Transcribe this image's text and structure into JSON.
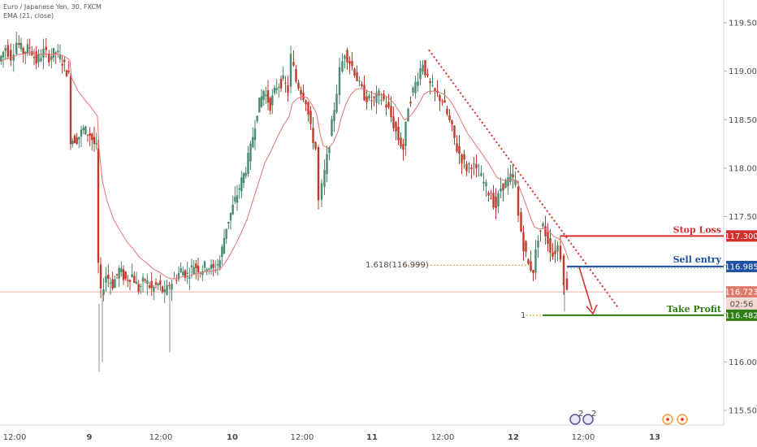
{
  "legend": {
    "symbol": "Euro / Japanese Yen, 30, FXCM",
    "indicator": "EMA (21, close)"
  },
  "chart_data": {
    "type": "candlestick",
    "ylim": [
      115.35,
      119.7
    ],
    "y_ticks": [
      115.5,
      116.0,
      116.5,
      117.0,
      117.5,
      118.0,
      118.5,
      119.0,
      119.5
    ],
    "y_tick_labels": [
      "115.500",
      "116.000",
      "116.500",
      "117.000",
      "117.500",
      "118.000",
      "118.500",
      "119.000",
      "119.500"
    ],
    "x_labels": [
      "12:00",
      "9",
      "12:00",
      "10",
      "12:00",
      "11",
      "12:00",
      "12",
      "12:00",
      "13"
    ],
    "bullish_color": "#4a8a6e",
    "bearish_color": "#c0392b",
    "ema_color": "#e57373",
    "levels": {
      "stop_loss": {
        "label": "Stop Loss",
        "value": 117.3,
        "tag": "117.300",
        "color": "#d32f2f"
      },
      "sell_entry": {
        "label": "Sell entry",
        "value": 116.985,
        "tag": "116.985",
        "color": "#1e4fa0"
      },
      "take_profit": {
        "label": "Take Profit",
        "value": 116.482,
        "tag": "116.482",
        "color": "#2e7d12"
      },
      "current_price": {
        "value": 116.723,
        "tag": "116.723",
        "countdown": "02:56",
        "color": "#e07a6a"
      }
    },
    "fib": {
      "label": "1.618(116.999)",
      "value": 116.999,
      "level1_label": "1",
      "color": "#e6a020"
    },
    "trendline": {
      "from_value": 119.22,
      "to_value": 116.55,
      "color": "#d32f2f"
    },
    "projection": {
      "from_value": 116.98,
      "to_value": 116.49,
      "color": "#d32f2f"
    },
    "events": {
      "earnings_count": "2",
      "icons": [
        "flag-icon",
        "flag-icon",
        "event-icon",
        "event-icon"
      ]
    },
    "series_points": [
      [
        0,
        119.1
      ],
      [
        8,
        119.25
      ],
      [
        15,
        119.15
      ],
      [
        22,
        119.3
      ],
      [
        30,
        119.2
      ],
      [
        38,
        119.25
      ],
      [
        46,
        119.1
      ],
      [
        55,
        119.2
      ],
      [
        62,
        119.15
      ],
      [
        70,
        119.2
      ],
      [
        78,
        119.1
      ],
      [
        86,
        118.95
      ],
      [
        88,
        118.3
      ],
      [
        96,
        118.3
      ],
      [
        104,
        118.4
      ],
      [
        112,
        118.35
      ],
      [
        120,
        118.2
      ],
      [
        122,
        117.0
      ],
      [
        126,
        116.7
      ],
      [
        132,
        116.9
      ],
      [
        140,
        116.8
      ],
      [
        148,
        116.95
      ],
      [
        156,
        116.85
      ],
      [
        164,
        116.9
      ],
      [
        172,
        116.75
      ],
      [
        180,
        116.85
      ],
      [
        188,
        116.75
      ],
      [
        196,
        116.8
      ],
      [
        204,
        116.7
      ],
      [
        210,
        116.8
      ],
      [
        216,
        116.85
      ],
      [
        224,
        116.95
      ],
      [
        232,
        116.9
      ],
      [
        240,
        117.0
      ],
      [
        248,
        116.95
      ],
      [
        256,
        117.0
      ],
      [
        264,
        116.95
      ],
      [
        272,
        117.05
      ],
      [
        280,
        117.4
      ],
      [
        288,
        117.6
      ],
      [
        296,
        117.8
      ],
      [
        304,
        118.0
      ],
      [
        310,
        118.2
      ],
      [
        318,
        118.6
      ],
      [
        326,
        118.8
      ],
      [
        334,
        118.65
      ],
      [
        342,
        118.85
      ],
      [
        350,
        118.9
      ],
      [
        356,
        118.8
      ],
      [
        360,
        119.15
      ],
      [
        366,
        118.9
      ],
      [
        372,
        118.8
      ],
      [
        378,
        118.7
      ],
      [
        384,
        118.4
      ],
      [
        390,
        118.2
      ],
      [
        394,
        117.65
      ],
      [
        398,
        117.8
      ],
      [
        404,
        118.1
      ],
      [
        410,
        118.45
      ],
      [
        416,
        118.8
      ],
      [
        420,
        119.0
      ],
      [
        426,
        119.2
      ],
      [
        432,
        119.1
      ],
      [
        438,
        119.0
      ],
      [
        444,
        118.85
      ],
      [
        450,
        118.75
      ],
      [
        456,
        118.7
      ],
      [
        462,
        118.7
      ],
      [
        468,
        118.75
      ],
      [
        474,
        118.7
      ],
      [
        480,
        118.6
      ],
      [
        486,
        118.45
      ],
      [
        492,
        118.3
      ],
      [
        498,
        118.2
      ],
      [
        504,
        118.65
      ],
      [
        510,
        118.8
      ],
      [
        516,
        118.95
      ],
      [
        522,
        119.1
      ],
      [
        528,
        118.9
      ],
      [
        534,
        118.8
      ],
      [
        540,
        118.75
      ],
      [
        546,
        118.7
      ],
      [
        552,
        118.55
      ],
      [
        558,
        118.4
      ],
      [
        564,
        118.2
      ],
      [
        570,
        118.1
      ],
      [
        576,
        118.0
      ],
      [
        582,
        118.05
      ],
      [
        588,
        117.95
      ],
      [
        594,
        117.9
      ],
      [
        600,
        117.8
      ],
      [
        606,
        117.7
      ],
      [
        612,
        117.6
      ],
      [
        618,
        117.8
      ],
      [
        624,
        117.85
      ],
      [
        630,
        117.9
      ],
      [
        636,
        117.85
      ],
      [
        640,
        117.5
      ],
      [
        646,
        117.2
      ],
      [
        652,
        117.0
      ],
      [
        658,
        116.95
      ],
      [
        664,
        117.3
      ],
      [
        670,
        117.4
      ],
      [
        676,
        117.25
      ],
      [
        682,
        117.1
      ],
      [
        688,
        117.2
      ],
      [
        692,
        117.1
      ],
      [
        696,
        116.85
      ],
      [
        700,
        116.72
      ]
    ]
  }
}
